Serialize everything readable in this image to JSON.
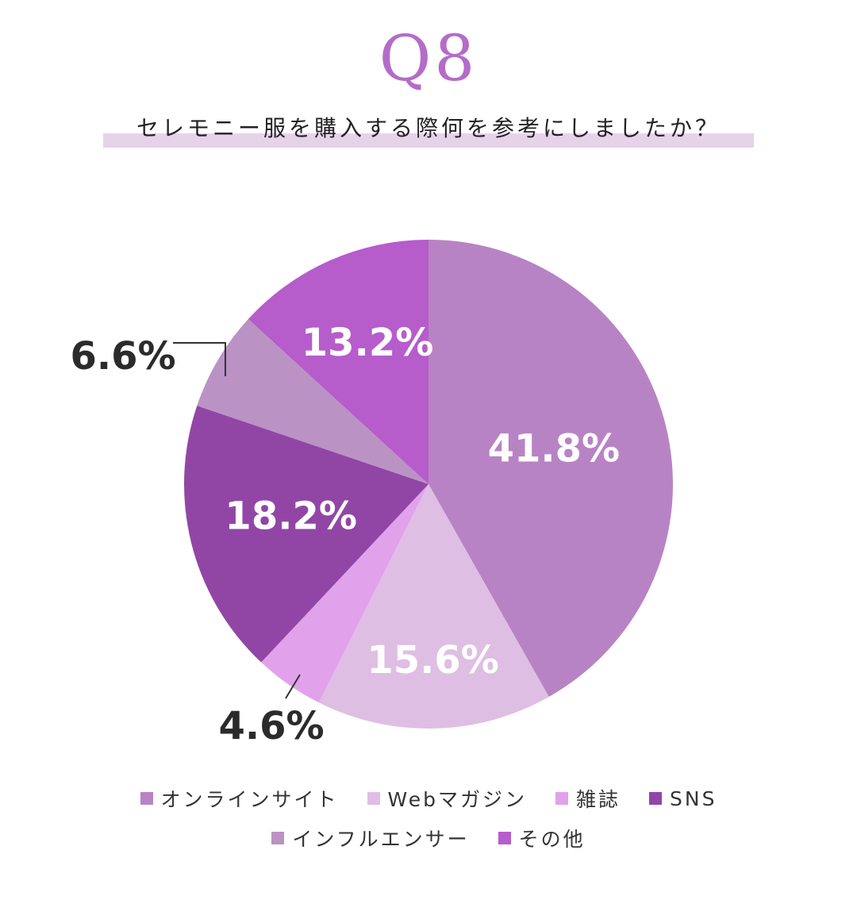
{
  "header": {
    "question_number": "Q8",
    "question_text": "セレモニー服を購入する際何を参考にしましたか？"
  },
  "chart_data": {
    "type": "pie",
    "categories": [
      "オンラインサイト",
      "Webマガジン",
      "雑誌",
      "SNS",
      "インフルエンサー",
      "その他"
    ],
    "values": [
      41.8,
      15.6,
      4.6,
      18.2,
      6.6,
      13.2
    ],
    "labels": [
      "41.8%",
      "15.6%",
      "4.6%",
      "18.2%",
      "6.6%",
      "13.2%"
    ],
    "colors": [
      "#b883c4",
      "#dfbee3",
      "#e1a2eb",
      "#9146a6",
      "#bb92c4",
      "#b65ccb"
    ],
    "legend_position": "bottom",
    "start": "12 o'clock",
    "direction": "clockwise"
  },
  "legend": {
    "items": [
      {
        "label": "オンラインサイト",
        "color": "#b883c4"
      },
      {
        "label": "Webマガジン",
        "color": "#dfbee3"
      },
      {
        "label": "雑誌",
        "color": "#e1a2eb"
      },
      {
        "label": "SNS",
        "color": "#9146a6"
      },
      {
        "label": "インフルエンサー",
        "color": "#bb92c4"
      },
      {
        "label": "その他",
        "color": "#b65ccb"
      }
    ]
  }
}
